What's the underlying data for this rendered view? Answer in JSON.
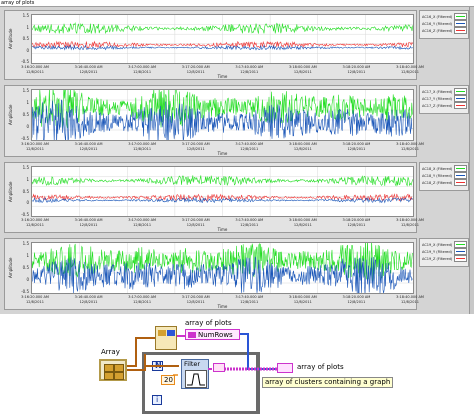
{
  "window_label": "array of plots",
  "colors": {
    "green": "#22dd22",
    "blue": "#1a56b8",
    "red": "#ee3333",
    "pink": "#ff33cc",
    "orange": "#e88a1a",
    "wire_blue": "#2a55d6"
  },
  "graphs": [
    {
      "y_axis_label": "Amplitude",
      "y_ticks": [
        "1.5",
        "1",
        "0.5",
        "0",
        "-0.5"
      ],
      "x_axis_label": "Time",
      "x_ticks": [
        {
          "time": "3:16:20.000 AM",
          "date": "12/8/2011"
        },
        {
          "time": "3:16:40.000 AM",
          "date": "12/8/2011"
        },
        {
          "time": "3:17:00.000 AM",
          "date": "12/8/2011"
        },
        {
          "time": "3:17:20.000 AM",
          "date": "12/8/2011"
        },
        {
          "time": "3:17:40.000 AM",
          "date": "12/8/2011"
        },
        {
          "time": "3:18:00.000 AM",
          "date": "12/8/2011"
        },
        {
          "time": "3:18:20.000 AM",
          "date": "12/8/2011"
        },
        {
          "time": "3:18:40.000 AM",
          "date": "12/8/2011"
        }
      ],
      "legend": [
        {
          "name": "AC16_X (Filtered)",
          "color": "#22dd22"
        },
        {
          "name": "AC16_Y (Filtered)",
          "color": "#1a56b8"
        },
        {
          "name": "AC16_Z (Filtered)",
          "color": "#ee3333"
        }
      ]
    },
    {
      "y_axis_label": "Amplitude",
      "y_ticks": [
        "1.5",
        "1",
        "0.5",
        "0",
        "-0.5"
      ],
      "x_axis_label": "Time",
      "x_ticks": [
        {
          "time": "3:16:20.000 AM",
          "date": "12/8/2011"
        },
        {
          "time": "3:16:40.000 AM",
          "date": "12/8/2011"
        },
        {
          "time": "3:17:00.000 AM",
          "date": "12/8/2011"
        },
        {
          "time": "3:17:20.000 AM",
          "date": "12/8/2011"
        },
        {
          "time": "3:17:40.000 AM",
          "date": "12/8/2011"
        },
        {
          "time": "3:18:00.000 AM",
          "date": "12/8/2011"
        },
        {
          "time": "3:18:20.000 AM",
          "date": "12/8/2011"
        },
        {
          "time": "3:18:40.000 AM",
          "date": "12/8/2011"
        }
      ],
      "legend": [
        {
          "name": "AC17_X (Filtered)",
          "color": "#22dd22"
        },
        {
          "name": "AC17_Y (Filtered)",
          "color": "#1a56b8"
        },
        {
          "name": "AC17_Z (Filtered)",
          "color": "#ee3333"
        }
      ]
    },
    {
      "y_axis_label": "Amplitude",
      "y_ticks": [
        "1.5",
        "1",
        "0.5",
        "0",
        "-0.5"
      ],
      "x_axis_label": "Time",
      "x_ticks": [
        {
          "time": "3:16:20.000 AM",
          "date": "12/8/2011"
        },
        {
          "time": "3:16:40.000 AM",
          "date": "12/8/2011"
        },
        {
          "time": "3:17:00.000 AM",
          "date": "12/8/2011"
        },
        {
          "time": "3:17:20.000 AM",
          "date": "12/8/2011"
        },
        {
          "time": "3:17:40.000 AM",
          "date": "12/8/2011"
        },
        {
          "time": "3:18:00.000 AM",
          "date": "12/8/2011"
        },
        {
          "time": "3:18:20.000 AM",
          "date": "12/8/2011"
        },
        {
          "time": "3:18:40.000 AM",
          "date": "12/8/2011"
        }
      ],
      "legend": [
        {
          "name": "AC18_X (Filtered)",
          "color": "#22dd22"
        },
        {
          "name": "AC18_Y (Filtered)",
          "color": "#1a56b8"
        },
        {
          "name": "AC18_Z (Filtered)",
          "color": "#ee3333"
        }
      ]
    },
    {
      "y_axis_label": "Amplitude",
      "y_ticks": [
        "1.5",
        "1",
        "0.5",
        "0",
        "-0.5"
      ],
      "x_axis_label": "Time",
      "x_ticks": [
        {
          "time": "3:16:20.000 AM",
          "date": "12/8/2011"
        },
        {
          "time": "3:16:40.000 AM",
          "date": "12/8/2011"
        },
        {
          "time": "3:17:00.000 AM",
          "date": "12/8/2011"
        },
        {
          "time": "3:17:20.000 AM",
          "date": "12/8/2011"
        },
        {
          "time": "3:17:40.000 AM",
          "date": "12/8/2011"
        },
        {
          "time": "3:18:00.000 AM",
          "date": "12/8/2011"
        },
        {
          "time": "3:18:20.000 AM",
          "date": "12/8/2011"
        },
        {
          "time": "3:18:40.000 AM",
          "date": "12/8/2011"
        }
      ],
      "legend": [
        {
          "name": "AC19_X (Filtered)",
          "color": "#22dd22"
        },
        {
          "name": "AC19_Y (Filtered)",
          "color": "#1a56b8"
        },
        {
          "name": "AC19_Z (Filtered)",
          "color": "#ee3333"
        }
      ]
    }
  ],
  "block_diagram": {
    "array_label": "Array",
    "array_of_plots_label": "array of plots",
    "numrows_label": "NumRows",
    "n_label": "N",
    "i_label": "i",
    "constant_value": "20",
    "filter_label": "Filter",
    "output_label": "array of plots",
    "comment": "array of clusters containing a graph"
  }
}
